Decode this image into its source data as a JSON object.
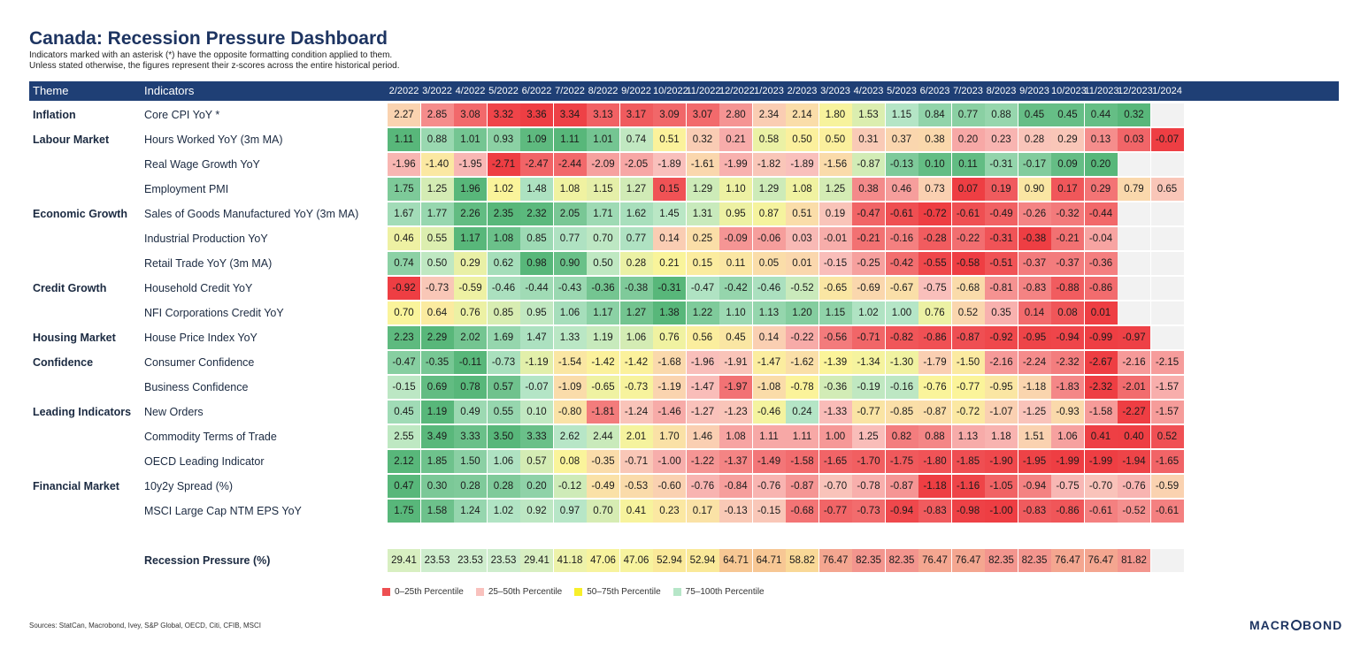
{
  "title": "Canada: Recession Pressure Dashboard",
  "subtitle_1": "Indicators marked with an asterisk (*) have the opposite formatting condition applied to them.",
  "subtitle_2": "Unless stated otherwise, the figures represent their z-scores across the entire historical period.",
  "header": {
    "theme": "Theme",
    "indicators": "Indicators"
  },
  "colors": {
    "header_bg": "#1f3f75",
    "p0_25": "#ee4f52",
    "p25_50": "#f9c1bd",
    "p50_75": "#fbf58c",
    "p75_100": "#b6e6c8",
    "strong_green": "#58b77a",
    "blank": "#f2f2f2"
  },
  "chart_data": {
    "type": "table",
    "columns": [
      "2/2022",
      "3/2022",
      "4/2022",
      "5/2022",
      "6/2022",
      "7/2022",
      "8/2022",
      "9/2022",
      "10/2022",
      "11/2022",
      "12/2022",
      "1/2023",
      "2/2023",
      "3/2023",
      "4/2023",
      "5/2023",
      "6/2023",
      "7/2023",
      "8/2023",
      "9/2023",
      "10/2023",
      "11/2023",
      "12/2023",
      "1/2024"
    ],
    "rows": [
      {
        "theme": "Inflation",
        "indicator": "Core CPI YoY *",
        "invert": true,
        "values": [
          "2.27",
          "2.85",
          "3.08",
          "3.32",
          "3.36",
          "3.34",
          "3.13",
          "3.17",
          "3.09",
          "3.07",
          "2.80",
          "2.34",
          "2.14",
          "1.80",
          "1.53",
          "1.15",
          "0.84",
          "0.77",
          "0.88",
          "0.45",
          "0.45",
          "0.44",
          "0.32",
          null
        ]
      },
      {
        "theme": "Labour Market",
        "indicator": "Hours Worked YoY (3m MA)",
        "values": [
          "1.11",
          "0.88",
          "1.01",
          "0.93",
          "1.09",
          "1.11",
          "1.01",
          "0.74",
          "0.51",
          "0.32",
          "0.21",
          "0.58",
          "0.50",
          "0.50",
          "0.31",
          "0.37",
          "0.38",
          "0.20",
          "0.23",
          "0.28",
          "0.29",
          "0.13",
          "0.03",
          "-0.07"
        ]
      },
      {
        "theme": "",
        "indicator": "Real Wage Growth YoY",
        "values": [
          "-1.96",
          "-1.40",
          "-1.95",
          "-2.71",
          "-2.47",
          "-2.44",
          "-2.09",
          "-2.05",
          "-1.89",
          "-1.61",
          "-1.99",
          "-1.82",
          "-1.89",
          "-1.56",
          "-0.87",
          "-0.13",
          "0.10",
          "0.11",
          "-0.31",
          "-0.17",
          "0.09",
          "0.20",
          null,
          null
        ]
      },
      {
        "theme": "",
        "indicator": "Employment PMI",
        "values": [
          "1.75",
          "1.25",
          "1.96",
          "1.02",
          "1.48",
          "1.08",
          "1.15",
          "1.27",
          "0.15",
          "1.29",
          "1.10",
          "1.29",
          "1.08",
          "1.25",
          "0.38",
          "0.46",
          "0.73",
          "0.07",
          "0.19",
          "0.90",
          "0.17",
          "0.29",
          "0.79",
          "0.65"
        ]
      },
      {
        "theme": "Economic Growth",
        "indicator": "Sales of Goods Manufactured YoY (3m MA)",
        "values": [
          "1.67",
          "1.77",
          "2.26",
          "2.35",
          "2.32",
          "2.05",
          "1.71",
          "1.62",
          "1.45",
          "1.31",
          "0.95",
          "0.87",
          "0.51",
          "0.19",
          "-0.47",
          "-0.61",
          "-0.72",
          "-0.61",
          "-0.49",
          "-0.26",
          "-0.32",
          "-0.44",
          null,
          null
        ]
      },
      {
        "theme": "",
        "indicator": "Industrial Production YoY",
        "values": [
          "0.46",
          "0.55",
          "1.17",
          "1.08",
          "0.85",
          "0.77",
          "0.70",
          "0.77",
          "0.14",
          "0.25",
          "-0.09",
          "-0.06",
          "0.03",
          "-0.01",
          "-0.21",
          "-0.16",
          "-0.28",
          "-0.22",
          "-0.31",
          "-0.38",
          "-0.21",
          "-0.04",
          null,
          null
        ]
      },
      {
        "theme": "",
        "indicator": "Retail Trade YoY (3m MA)",
        "values": [
          "0.74",
          "0.50",
          "0.29",
          "0.62",
          "0.98",
          "0.90",
          "0.50",
          "0.28",
          "0.21",
          "0.15",
          "0.11",
          "0.05",
          "0.01",
          "-0.15",
          "-0.25",
          "-0.42",
          "-0.55",
          "-0.58",
          "-0.51",
          "-0.37",
          "-0.37",
          "-0.36",
          null,
          null
        ]
      },
      {
        "theme": "Credit Growth",
        "indicator": "Household Credit YoY",
        "values": [
          "-0.92",
          "-0.73",
          "-0.59",
          "-0.46",
          "-0.44",
          "-0.43",
          "-0.36",
          "-0.38",
          "-0.31",
          "-0.47",
          "-0.42",
          "-0.46",
          "-0.52",
          "-0.65",
          "-0.69",
          "-0.67",
          "-0.75",
          "-0.68",
          "-0.81",
          "-0.83",
          "-0.88",
          "-0.86",
          null,
          null
        ]
      },
      {
        "theme": "",
        "indicator": "NFI Corporations Credit YoY",
        "values": [
          "0.70",
          "0.64",
          "0.76",
          "0.85",
          "0.95",
          "1.06",
          "1.17",
          "1.27",
          "1.38",
          "1.22",
          "1.10",
          "1.13",
          "1.20",
          "1.15",
          "1.02",
          "1.00",
          "0.76",
          "0.52",
          "0.35",
          "0.14",
          "0.08",
          "0.01",
          null,
          null
        ]
      },
      {
        "theme": "Housing Market",
        "indicator": "House Price Index YoY",
        "values": [
          "2.23",
          "2.29",
          "2.02",
          "1.69",
          "1.47",
          "1.33",
          "1.19",
          "1.06",
          "0.76",
          "0.56",
          "0.45",
          "0.14",
          "-0.22",
          "-0.56",
          "-0.71",
          "-0.82",
          "-0.86",
          "-0.87",
          "-0.92",
          "-0.95",
          "-0.94",
          "-0.99",
          "-0.97",
          null
        ]
      },
      {
        "theme": "Confidence",
        "indicator": "Consumer Confidence",
        "values": [
          "-0.47",
          "-0.35",
          "-0.11",
          "-0.73",
          "-1.19",
          "-1.54",
          "-1.42",
          "-1.42",
          "-1.68",
          "-1.96",
          "-1.91",
          "-1.47",
          "-1.62",
          "-1.39",
          "-1.34",
          "-1.30",
          "-1.79",
          "-1.50",
          "-2.16",
          "-2.24",
          "-2.32",
          "-2.67",
          "-2.16",
          "-2.15"
        ]
      },
      {
        "theme": "",
        "indicator": "Business Confidence",
        "values": [
          "-0.15",
          "0.69",
          "0.78",
          "0.57",
          "-0.07",
          "-1.09",
          "-0.65",
          "-0.73",
          "-1.19",
          "-1.47",
          "-1.97",
          "-1.08",
          "-0.78",
          "-0.36",
          "-0.19",
          "-0.16",
          "-0.76",
          "-0.77",
          "-0.95",
          "-1.18",
          "-1.83",
          "-2.32",
          "-2.01",
          "-1.57"
        ]
      },
      {
        "theme": "Leading Indicators",
        "indicator": "New Orders",
        "values": [
          "0.45",
          "1.19",
          "0.49",
          "0.55",
          "0.10",
          "-0.80",
          "-1.81",
          "-1.24",
          "-1.46",
          "-1.27",
          "-1.23",
          "-0.46",
          "0.24",
          "-1.33",
          "-0.77",
          "-0.85",
          "-0.87",
          "-0.72",
          "-1.07",
          "-1.25",
          "-0.93",
          "-1.58",
          "-2.27",
          "-1.57"
        ]
      },
      {
        "theme": "",
        "indicator": "Commodity Terms of Trade",
        "values": [
          "2.55",
          "3.49",
          "3.33",
          "3.50",
          "3.33",
          "2.62",
          "2.44",
          "2.01",
          "1.70",
          "1.46",
          "1.08",
          "1.11",
          "1.11",
          "1.00",
          "1.25",
          "0.82",
          "0.88",
          "1.13",
          "1.18",
          "1.51",
          "1.06",
          "0.41",
          "0.40",
          "0.52"
        ]
      },
      {
        "theme": "",
        "indicator": "OECD Leading Indicator",
        "values": [
          "2.12",
          "1.85",
          "1.50",
          "1.06",
          "0.57",
          "0.08",
          "-0.35",
          "-0.71",
          "-1.00",
          "-1.22",
          "-1.37",
          "-1.49",
          "-1.58",
          "-1.65",
          "-1.70",
          "-1.75",
          "-1.80",
          "-1.85",
          "-1.90",
          "-1.95",
          "-1.99",
          "-1.99",
          "-1.94",
          "-1.65"
        ]
      },
      {
        "theme": "Financial Market",
        "indicator": "10y2y Spread (%)",
        "values": [
          "0.47",
          "0.30",
          "0.28",
          "0.28",
          "0.20",
          "-0.12",
          "-0.49",
          "-0.53",
          "-0.60",
          "-0.76",
          "-0.84",
          "-0.76",
          "-0.87",
          "-0.70",
          "-0.78",
          "-0.87",
          "-1.18",
          "-1.16",
          "-1.05",
          "-0.94",
          "-0.75",
          "-0.70",
          "-0.76",
          "-0.59"
        ]
      },
      {
        "theme": "",
        "indicator": "MSCI Large Cap NTM EPS YoY",
        "values": [
          "1.75",
          "1.58",
          "1.24",
          "1.02",
          "0.92",
          "0.97",
          "0.70",
          "0.41",
          "0.23",
          "0.17",
          "-0.13",
          "-0.15",
          "-0.68",
          "-0.77",
          "-0.73",
          "-0.94",
          "-0.83",
          "-0.98",
          "-1.00",
          "-0.83",
          "-0.86",
          "-0.61",
          "-0.52",
          "-0.61"
        ]
      }
    ],
    "summary": {
      "label": "Recession Pressure (%)",
      "values": [
        "29.41",
        "23.53",
        "23.53",
        "23.53",
        "29.41",
        "41.18",
        "47.06",
        "47.06",
        "52.94",
        "52.94",
        "64.71",
        "64.71",
        "58.82",
        "76.47",
        "82.35",
        "82.35",
        "76.47",
        "76.47",
        "82.35",
        "82.35",
        "76.47",
        "76.47",
        "81.82",
        null
      ]
    },
    "legend": [
      "0–25th Percentile",
      "25–50th Percentile",
      "50–75th Percentile",
      "75–100th Percentile"
    ]
  },
  "sources": "Sources: StatCan, Macrobond, Ivey, S&P Global, OECD, Citi, CFIB, MSCI",
  "logo": {
    "part1": "MACR",
    "part2": "BOND"
  }
}
